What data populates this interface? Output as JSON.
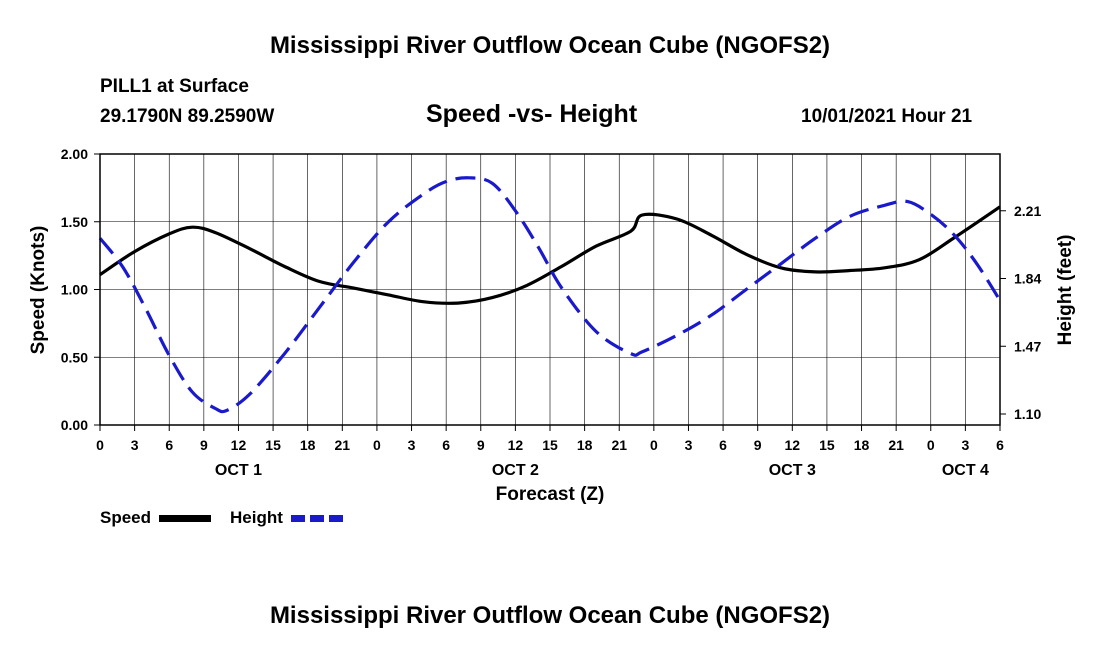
{
  "header": {
    "title": "Mississippi River Outflow Ocean Cube (NGOFS2)",
    "station": "PILL1 at Surface",
    "coords": "29.1790N  89.2590W",
    "plot_title": "Speed -vs- Height",
    "datetime": "10/01/2021 Hour 21"
  },
  "footer": {
    "title": "Mississippi River Outflow Ocean Cube (NGOFS2)"
  },
  "legend": {
    "speed_label": "Speed",
    "height_label": "Height"
  },
  "colors": {
    "speed": "#000000",
    "height": "#1a1acc"
  },
  "chart_data": {
    "type": "line",
    "title": "Speed -vs- Height",
    "xlabel": "Forecast (Z)",
    "ylabel": "Speed (Knots)",
    "y2label": "Height (feet)",
    "xlim": [
      0,
      78
    ],
    "ylim": [
      0,
      2.0
    ],
    "y2lim": [
      1.04,
      2.52
    ],
    "y_ticks": [
      "0.00",
      "0.50",
      "1.00",
      "1.50",
      "2.00"
    ],
    "y2_ticks": [
      "1.10",
      "1.47",
      "1.84",
      "2.21"
    ],
    "x_tick_labels": [
      "0",
      "3",
      "6",
      "9",
      "12",
      "15",
      "18",
      "21",
      "0",
      "3",
      "6",
      "9",
      "12",
      "15",
      "18",
      "21",
      "0",
      "3",
      "6",
      "9",
      "12",
      "15",
      "18",
      "21",
      "0",
      "3",
      "6"
    ],
    "day_labels": [
      {
        "label": "OCT 1",
        "hour": 12
      },
      {
        "label": "OCT 2",
        "hour": 36
      },
      {
        "label": "OCT 3",
        "hour": 60
      },
      {
        "label": "OCT 4",
        "hour": 75
      }
    ],
    "series": [
      {
        "name": "Speed",
        "axis": "left",
        "style": "solid",
        "x": [
          0,
          3,
          6,
          8,
          10,
          13,
          16,
          19,
          22,
          25,
          28,
          31,
          34,
          37,
          40,
          43,
          46,
          47,
          50,
          53,
          56,
          59,
          62,
          65,
          68,
          71,
          74,
          78
        ],
        "values": [
          1.11,
          1.28,
          1.41,
          1.46,
          1.42,
          1.3,
          1.17,
          1.06,
          1.01,
          0.96,
          0.91,
          0.9,
          0.94,
          1.03,
          1.17,
          1.32,
          1.43,
          1.55,
          1.52,
          1.4,
          1.26,
          1.16,
          1.13,
          1.14,
          1.16,
          1.22,
          1.38,
          1.61
        ]
      },
      {
        "name": "Height",
        "axis": "right",
        "style": "dashed",
        "x": [
          0,
          2,
          4,
          6,
          8,
          10,
          11,
          13,
          16,
          19,
          22,
          25,
          28,
          30,
          32,
          34,
          36,
          38,
          40,
          43,
          46,
          47,
          50,
          53,
          56,
          59,
          62,
          65,
          68,
          70,
          72,
          74,
          76,
          78
        ],
        "values": [
          2.06,
          1.9,
          1.67,
          1.42,
          1.22,
          1.13,
          1.12,
          1.21,
          1.43,
          1.68,
          1.93,
          2.15,
          2.3,
          2.37,
          2.39,
          2.36,
          2.21,
          2.01,
          1.79,
          1.55,
          1.43,
          1.44,
          1.53,
          1.64,
          1.78,
          1.92,
          2.06,
          2.18,
          2.24,
          2.26,
          2.19,
          2.08,
          1.92,
          1.72
        ]
      }
    ]
  }
}
